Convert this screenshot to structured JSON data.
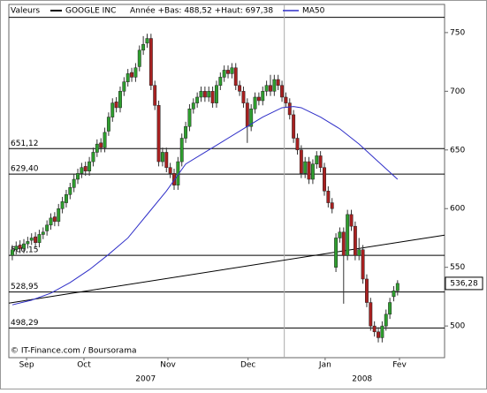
{
  "chart_data": {
    "type": "candlestick",
    "legend_title": "Valeurs",
    "series_name": "GOOGLE INC",
    "stats": "Année +Bas: 488,52 +Haut: 697,38",
    "source": "© IT-Finance.com / Boursorama",
    "up_color": "#2e9e2e",
    "down_color": "#a82020",
    "open": [
      560,
      565,
      569,
      566,
      570,
      573,
      576,
      571,
      578,
      581,
      586,
      593,
      589,
      600,
      605,
      612,
      618,
      625,
      630,
      636,
      632,
      640,
      648,
      656,
      652,
      666,
      678,
      691,
      686,
      700,
      708,
      716,
      712,
      721,
      735,
      741,
      745,
      705,
      688,
      640,
      648,
      635,
      630,
      620,
      640,
      660,
      670,
      685,
      690,
      695,
      700,
      695,
      700,
      690,
      705,
      712,
      718,
      715,
      720,
      705,
      700,
      690,
      670,
      685,
      695,
      692,
      700,
      705,
      700,
      710,
      705,
      695,
      690,
      680,
      660,
      650,
      630,
      640,
      625,
      638,
      645,
      635,
      615,
      605,
      550,
      575,
      580,
      560,
      595,
      585,
      560,
      565,
      540,
      520,
      500,
      495,
      490,
      500,
      510,
      525,
      530
    ],
    "high": [
      569,
      572,
      573,
      574,
      576,
      579,
      580,
      582,
      584,
      590,
      596,
      597,
      604,
      610,
      616,
      622,
      629,
      634,
      639,
      640,
      644,
      652,
      659,
      660,
      669,
      682,
      694,
      695,
      704,
      712,
      719,
      720,
      724,
      739,
      747,
      749,
      749,
      709,
      692,
      652,
      652,
      639,
      634,
      644,
      664,
      674,
      689,
      694,
      699,
      704,
      704,
      704,
      704,
      709,
      716,
      722,
      722,
      724,
      724,
      709,
      704,
      694,
      689,
      699,
      699,
      704,
      709,
      714,
      714,
      714,
      709,
      699,
      694,
      684,
      664,
      654,
      644,
      644,
      642,
      649,
      649,
      639,
      619,
      609,
      579,
      584,
      584,
      599,
      599,
      589,
      575,
      569,
      544,
      524,
      504,
      499,
      504,
      514,
      524,
      534,
      539
    ],
    "low": [
      556,
      561,
      562,
      562,
      566,
      569,
      567,
      567,
      574,
      577,
      582,
      585,
      585,
      596,
      601,
      608,
      614,
      621,
      626,
      628,
      628,
      636,
      644,
      648,
      648,
      662,
      674,
      682,
      682,
      696,
      704,
      708,
      708,
      717,
      731,
      737,
      701,
      684,
      636,
      636,
      631,
      626,
      616,
      616,
      636,
      656,
      666,
      681,
      686,
      691,
      691,
      691,
      686,
      686,
      701,
      708,
      711,
      711,
      701,
      696,
      686,
      656,
      666,
      681,
      688,
      688,
      696,
      696,
      696,
      701,
      691,
      686,
      676,
      656,
      646,
      626,
      626,
      621,
      621,
      634,
      631,
      611,
      601,
      596,
      546,
      571,
      519,
      556,
      581,
      556,
      556,
      536,
      516,
      496,
      491,
      486,
      486,
      496,
      506,
      521,
      526
    ],
    "close": [
      565,
      568,
      566,
      570,
      572,
      575,
      571,
      578,
      580,
      586,
      592,
      589,
      600,
      606,
      612,
      618,
      625,
      630,
      635,
      632,
      640,
      648,
      655,
      652,
      665,
      678,
      690,
      686,
      700,
      708,
      715,
      712,
      720,
      735,
      740,
      745,
      705,
      688,
      640,
      648,
      635,
      630,
      620,
      640,
      660,
      670,
      685,
      690,
      695,
      700,
      695,
      700,
      690,
      705,
      712,
      718,
      715,
      720,
      705,
      700,
      690,
      670,
      685,
      695,
      692,
      700,
      705,
      700,
      710,
      705,
      695,
      690,
      680,
      660,
      650,
      630,
      640,
      625,
      638,
      645,
      635,
      615,
      605,
      600,
      575,
      580,
      560,
      595,
      585,
      560,
      565,
      540,
      520,
      500,
      495,
      490,
      500,
      510,
      520,
      530,
      536.28
    ],
    "ma": {
      "name": "MA50",
      "color": "#2f2fc8",
      "x": [
        0,
        5,
        10,
        15,
        20,
        25,
        30,
        35,
        40,
        45,
        50,
        55,
        60,
        65,
        70,
        73,
        75,
        80,
        85,
        90,
        95,
        100
      ],
      "values": [
        518,
        522,
        528,
        537,
        548,
        561,
        575,
        595,
        615,
        638,
        648,
        658,
        668,
        678,
        686,
        687,
        686,
        678,
        668,
        655,
        640,
        625
      ]
    },
    "levels": [
      {
        "value": 651.12,
        "label": "651,12"
      },
      {
        "value": 629.4,
        "label": "629,40"
      },
      {
        "value": 560.15,
        "label": "560,15"
      },
      {
        "value": 528.95,
        "label": "528,95"
      },
      {
        "value": 498.29,
        "label": "498,29"
      }
    ],
    "top_line": 763,
    "trend_line": {
      "x": [
        -0.9,
        112.2
      ],
      "values": [
        519.5,
        577.4
      ]
    },
    "marker_x": 70.6,
    "last_price": {
      "value": 536.28,
      "label": "536,28"
    },
    "xlim": [
      -0.9,
      112.2
    ],
    "ylim": [
      473,
      774
    ],
    "yticks": [
      500,
      550,
      600,
      650,
      700,
      750
    ],
    "xticks": [
      {
        "value": 3.7,
        "label": "Sep"
      },
      {
        "value": 18.6,
        "label": "Oct"
      },
      {
        "value": 40.4,
        "label": "Nov"
      },
      {
        "value": 61.2,
        "label": "Dec"
      },
      {
        "value": 81.2,
        "label": "Jan"
      },
      {
        "value": 100.5,
        "label": "Fev"
      }
    ],
    "year_ticks": [
      {
        "value": 34.6,
        "label": "2007"
      },
      {
        "value": 90.8,
        "label": "2008"
      }
    ]
  }
}
